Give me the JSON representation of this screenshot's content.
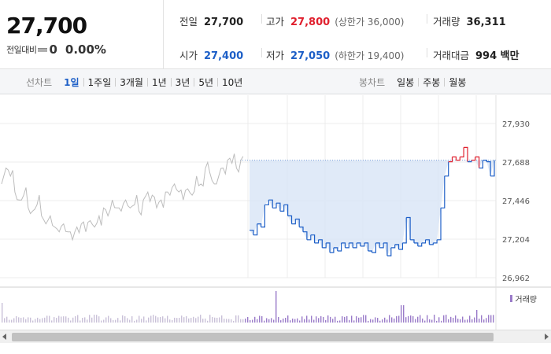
{
  "quote": {
    "price": "27,700",
    "change_label": "전일대비",
    "change_value": "0",
    "change_pct": "0.00%"
  },
  "stats": {
    "prev_close": {
      "label": "전일",
      "value": "27,700"
    },
    "high": {
      "label": "고가",
      "value": "27,800",
      "sub": "(상한가 36,000)"
    },
    "volume": {
      "label": "거래량",
      "value": "36,311"
    },
    "open": {
      "label": "시가",
      "value": "27,400"
    },
    "low": {
      "label": "저가",
      "value": "27,050",
      "sub": "(하한가 19,400)"
    },
    "amount": {
      "label": "거래대금",
      "value": "994 백만"
    }
  },
  "toolbar": {
    "line_chart_label": "선차트",
    "line_periods": [
      "1일",
      "1주일",
      "3개월",
      "1년",
      "3년",
      "5년",
      "10년"
    ],
    "active_period": "1일",
    "candle_chart_label": "봉차트",
    "candle_periods": [
      "일봉",
      "주봉",
      "월봉"
    ]
  },
  "chart": {
    "volume_legend": "거래량",
    "colors": {
      "up": "#e0202e",
      "down": "#1d5fc7",
      "prev_day": "#bdbdbd",
      "fill": "#dbe6f7",
      "volume": "#9a7bc9"
    }
  },
  "chart_data": {
    "type": "line",
    "y_ticks": [
      "27,930",
      "27,688",
      "27,446",
      "27,204",
      "26,962"
    ],
    "ylim": [
      26962,
      27930
    ],
    "reference_price": 27700,
    "grid": true,
    "legend": "bottom-right",
    "series": [
      {
        "values": [
          27550,
          27650,
          27600,
          27500,
          27450,
          27480,
          27400,
          27380,
          27420,
          27350,
          27300,
          27350,
          27280,
          27250,
          27300,
          27250,
          27200,
          27280,
          27300,
          27250,
          27320,
          27280,
          27350,
          27400,
          27350,
          27450,
          27400,
          27380,
          27450,
          27400,
          27420,
          27380,
          27450,
          27500,
          27480,
          27400,
          27450,
          27500,
          27480,
          27550,
          27500,
          27450,
          27520,
          27480,
          27600,
          27550,
          27650,
          27620,
          27550,
          27600,
          27650,
          27700,
          27680,
          27650,
          27700
        ]
      },
      {
        "values": [
          27260,
          27230,
          27300,
          27280,
          27420,
          27450,
          27400,
          27430,
          27380,
          27420,
          27350,
          27300,
          27330,
          27280,
          27250,
          27200,
          27230,
          27180,
          27200,
          27150,
          27180,
          27120,
          27150,
          27130,
          27180,
          27150,
          27180,
          27150,
          27180,
          27160,
          27180,
          27130,
          27120,
          27180,
          27150,
          27180,
          27100,
          27150,
          27170,
          27140,
          27180,
          27340,
          27200,
          27180,
          27160,
          27180,
          27200,
          27170,
          27180,
          27200,
          27400,
          27600,
          27690,
          27720,
          27700,
          27720,
          27780,
          27690,
          27700,
          27720,
          27650,
          27700,
          27690,
          27600,
          27700
        ]
      }
    ]
  }
}
